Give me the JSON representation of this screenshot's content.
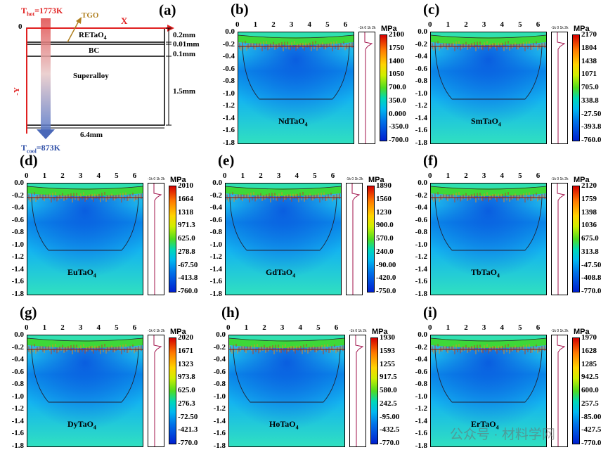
{
  "schematic": {
    "panel_label": "(a)",
    "t_hot": "T",
    "t_hot_sub": "hot",
    "t_hot_val": "=1773K",
    "t_cool": "T",
    "t_cool_sub": "cool",
    "t_cool_val": "=873K",
    "tgo": "TGO",
    "x_axis": "X",
    "y_axis": "-Y",
    "origin": "0",
    "layer_top": "RETaO",
    "layer_top_sub": "4",
    "layer_bc": "BC",
    "layer_sub": "Superalloy",
    "dim_1": "0.2mm",
    "dim_2": "0.01mm",
    "dim_3": "0.1mm",
    "dim_4": "1.5mm",
    "dim_width": "6.4mm",
    "colors": {
      "axis": "#e02020",
      "hot": "#e04040",
      "cool": "#4060c0",
      "tgo": "#b08020"
    }
  },
  "x_ticks": [
    "0",
    "1",
    "2",
    "3",
    "4",
    "5",
    "6"
  ],
  "y_ticks": [
    "0.0",
    "-0.2",
    "-0.4",
    "-0.6",
    "-0.8",
    "-1.0",
    "-1.2",
    "-1.4",
    "-1.6",
    "-1.8"
  ],
  "profile_ticks": "-1k 0 1k 2k",
  "unit": "MPa",
  "panels": [
    {
      "label": "(b)",
      "material": "NdTaO",
      "sub": "4",
      "colorbar": [
        "2100",
        "1750",
        "1400",
        "1050",
        "700.0",
        "350.0",
        "0.000",
        "-350.0",
        "-700.0"
      ]
    },
    {
      "label": "(c)",
      "material": "SmTaO",
      "sub": "4",
      "colorbar": [
        "2170",
        "1804",
        "1438",
        "1071",
        "705.0",
        "338.8",
        "-27.50",
        "-393.8",
        "-760.0"
      ]
    },
    {
      "label": "(d)",
      "material": "EuTaO",
      "sub": "4",
      "colorbar": [
        "2010",
        "1664",
        "1318",
        "971.3",
        "625.0",
        "278.8",
        "-67.50",
        "-413.8",
        "-760.0"
      ]
    },
    {
      "label": "(e)",
      "material": "GdTaO",
      "sub": "4",
      "colorbar": [
        "1890",
        "1560",
        "1230",
        "900.0",
        "570.0",
        "240.0",
        "-90.00",
        "-420.0",
        "-750.0"
      ]
    },
    {
      "label": "(f)",
      "material": "TbTaO",
      "sub": "4",
      "colorbar": [
        "2120",
        "1759",
        "1398",
        "1036",
        "675.0",
        "313.8",
        "-47.50",
        "-408.8",
        "-770.0"
      ]
    },
    {
      "label": "(g)",
      "material": "DyTaO",
      "sub": "4",
      "colorbar": [
        "2020",
        "1671",
        "1323",
        "973.8",
        "625.0",
        "276.3",
        "-72.50",
        "-421.3",
        "-770.0"
      ]
    },
    {
      "label": "(h)",
      "material": "HoTaO",
      "sub": "4",
      "colorbar": [
        "1930",
        "1593",
        "1255",
        "917.5",
        "580.0",
        "242.5",
        "-95.00",
        "-432.5",
        "-770.0"
      ]
    },
    {
      "label": "(i)",
      "material": "ErTaO",
      "sub": "4",
      "colorbar": [
        "1970",
        "1628",
        "1285",
        "942.5",
        "600.0",
        "257.5",
        "-85.00",
        "-427.5",
        "-770.0"
      ]
    }
  ],
  "watermark": "公众号 · 材料学网"
}
